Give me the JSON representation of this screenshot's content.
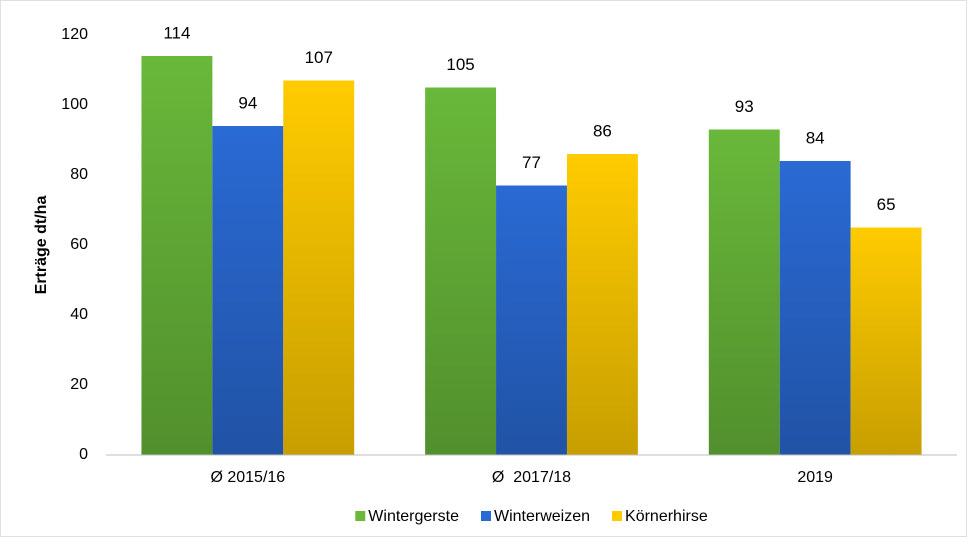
{
  "chart_data": {
    "type": "bar",
    "y_label": "Erträge dt/ha",
    "categories": [
      "Ø 2015/16",
      "Ø  2017/18",
      "2019"
    ],
    "series": [
      {
        "name": "Wintergerste",
        "color": "#69b83a",
        "values": [
          114,
          105,
          93
        ]
      },
      {
        "name": "Winterweizen",
        "color": "#2a6ad4",
        "values": [
          94,
          77,
          84
        ]
      },
      {
        "name": "Körnerhirse",
        "color": "#ffcb00",
        "values": [
          107,
          86,
          65
        ]
      }
    ],
    "ylim": [
      0,
      120
    ],
    "yticks": [
      0,
      20,
      40,
      60,
      80,
      100,
      120
    ]
  }
}
